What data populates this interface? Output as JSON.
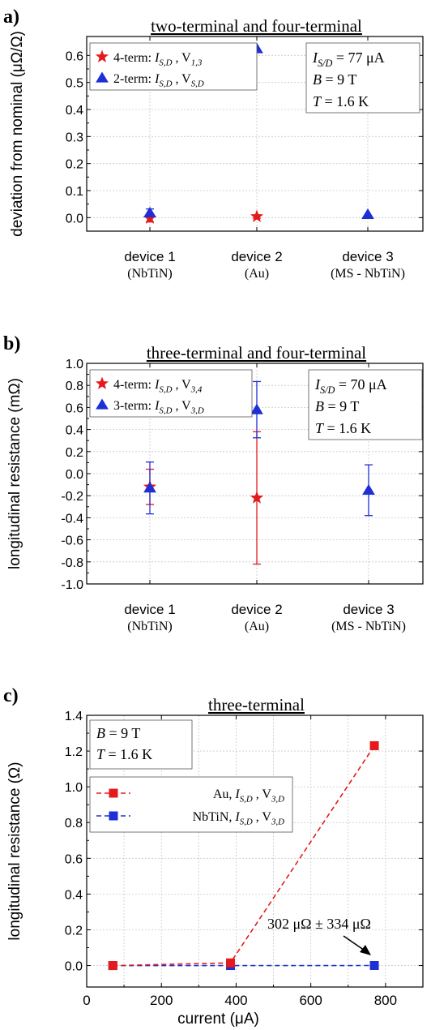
{
  "panels": [
    {
      "id": "a",
      "letter": "a)",
      "title": "two-terminal and four-terminal",
      "ylabel": "deviation from nominal (μΩ/Ω)",
      "ylim": [
        -0.05,
        0.67
      ],
      "yticks": [
        "0.0",
        "0.1",
        "0.2",
        "0.3",
        "0.4",
        "0.5",
        "0.6"
      ],
      "categories": [
        {
          "name": "device 1",
          "sub": "(NbTiN)"
        },
        {
          "name": "device 2",
          "sub": "(Au)"
        },
        {
          "name": "device 3",
          "sub": "(MS - NbTiN)"
        }
      ],
      "legend": [
        {
          "symbol": "star",
          "color": "#e41a1c",
          "prefix": "4-term: ",
          "label_main": "I",
          "label_sub": "S,D",
          "label_mid": " , V",
          "label_sub2": "1,3"
        },
        {
          "symbol": "triangle",
          "color": "#1f2fd6",
          "prefix": "2-term: ",
          "label_main": "I",
          "label_sub": "S,D",
          "label_mid": " , V",
          "label_sub2": "S,D"
        }
      ],
      "info": [
        {
          "main": "I",
          "sub": "S/D",
          "rest": " = 77 μA"
        },
        {
          "main": "B",
          "sub": "",
          "rest": " = 9 T"
        },
        {
          "main": "T",
          "sub": "",
          "rest": " = 1.6 K"
        }
      ]
    },
    {
      "id": "b",
      "letter": "b)",
      "title": "three-terminal and four-terminal",
      "ylabel": "longitudinal resistance (mΩ)",
      "ylim": [
        -1.0,
        1.0
      ],
      "yticks": [
        "-1.0",
        "-0.8",
        "-0.6",
        "-0.4",
        "-0.2",
        "0.0",
        "0.2",
        "0.4",
        "0.6",
        "0.8",
        "1.0"
      ],
      "categories": [
        {
          "name": "device 1",
          "sub": "(NbTiN)"
        },
        {
          "name": "device 2",
          "sub": "(Au)"
        },
        {
          "name": "device 3",
          "sub": "(MS - NbTiN)"
        }
      ],
      "legend": [
        {
          "symbol": "star",
          "color": "#e41a1c",
          "prefix": "4-term: ",
          "label_main": "I",
          "label_sub": "S,D",
          "label_mid": " , V",
          "label_sub2": "3,4"
        },
        {
          "symbol": "triangle",
          "color": "#1f2fd6",
          "prefix": "3-term: ",
          "label_main": "I",
          "label_sub": "S,D",
          "label_mid": " , V",
          "label_sub2": "3,D"
        }
      ],
      "info": [
        {
          "main": "I",
          "sub": "S/D",
          "rest": " = 70 μA"
        },
        {
          "main": "B",
          "sub": "",
          "rest": " = 9 T"
        },
        {
          "main": "T",
          "sub": "",
          "rest": " = 1.6 K"
        }
      ]
    },
    {
      "id": "c",
      "letter": "c)",
      "title": "three-terminal",
      "ylabel": "longitudinal resistance (Ω)",
      "xlabel": "current (μA)",
      "ylim": [
        -0.12,
        1.4
      ],
      "xlim": [
        0,
        900
      ],
      "yticks": [
        "0.0",
        "0.2",
        "0.4",
        "0.6",
        "0.8",
        "1.0",
        "1.2",
        "1.4"
      ],
      "xticks": [
        "0",
        "200",
        "400",
        "600",
        "800"
      ],
      "info": [
        {
          "main": "B",
          "sub": "",
          "rest": " = 9 T"
        },
        {
          "main": "T",
          "sub": "",
          "rest": " = 1.6 K"
        }
      ],
      "legend": [
        {
          "color": "#e41a1c",
          "prefix": "Au, ",
          "label_main": "I",
          "label_sub": "S,D",
          "label_mid": " , V",
          "label_sub2": "3,D"
        },
        {
          "color": "#1f2fd6",
          "prefix": "NbTiN, ",
          "label_main": "I",
          "label_sub": "S,D",
          "label_mid": " , V",
          "label_sub2": "3,D"
        }
      ],
      "annotation": "302 μΩ ± 334 μΩ"
    }
  ],
  "chart_data": [
    {
      "type": "scatter",
      "title": "two-terminal and four-terminal",
      "xlabel": "",
      "ylabel": "deviation from nominal (μΩ/Ω)",
      "categories": [
        "device 1",
        "device 2",
        "device 3"
      ],
      "ylim": [
        -0.05,
        0.67
      ],
      "series": [
        {
          "name": "4-term: I S,D , V 1,3",
          "color": "#e41a1c",
          "marker": "star",
          "values": [
            -0.002,
            0.004,
            null
          ],
          "errors": [
            0.014,
            0.006,
            null
          ]
        },
        {
          "name": "2-term: I S,D , V S,D",
          "color": "#1f2fd6",
          "marker": "triangle",
          "values": [
            0.018,
            0.625,
            0.012
          ],
          "errors": [
            0.014,
            0.0,
            0.0
          ]
        }
      ]
    },
    {
      "type": "scatter",
      "title": "three-terminal and four-terminal",
      "xlabel": "",
      "ylabel": "longitudinal resistance (mΩ)",
      "categories": [
        "device 1",
        "device 2",
        "device 3"
      ],
      "ylim": [
        -1.0,
        1.0
      ],
      "series": [
        {
          "name": "4-term: I S,D , V 3,4",
          "color": "#e41a1c",
          "marker": "star",
          "values": [
            -0.12,
            -0.22,
            null
          ],
          "errors": [
            0.16,
            0.6,
            null
          ]
        },
        {
          "name": "3-term: I S,D , V 3,D",
          "color": "#1f2fd6",
          "marker": "triangle",
          "values": [
            -0.13,
            0.58,
            -0.15
          ],
          "errors": [
            0.235,
            0.255,
            0.23
          ]
        }
      ]
    },
    {
      "type": "line",
      "title": "three-terminal",
      "xlabel": "current (μA)",
      "ylabel": "longitudinal resistance (Ω)",
      "xlim": [
        0,
        900
      ],
      "ylim": [
        -0.12,
        1.4
      ],
      "series": [
        {
          "name": "Au, I S,D , V 3,D",
          "color": "#e41a1c",
          "marker": "square",
          "x": [
            70,
            385,
            770
          ],
          "values": [
            0.0,
            0.015,
            1.23
          ]
        },
        {
          "name": "NbTiN, I S,D , V 3,D",
          "color": "#1f2fd6",
          "marker": "square",
          "x": [
            70,
            385,
            770
          ],
          "values": [
            0.0,
            0.0,
            0.0003
          ]
        }
      ]
    }
  ]
}
